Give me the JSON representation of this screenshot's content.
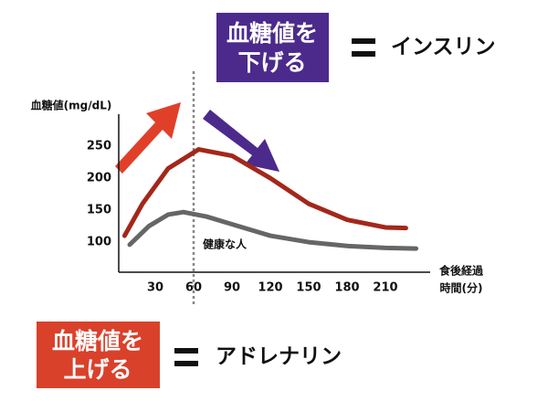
{
  "chart_data": {
    "type": "line",
    "y_label": "血糖値(mg/dL)",
    "x_label": [
      "食後経過",
      "時間(分)"
    ],
    "xlim": [
      0,
      245
    ],
    "xticks": [
      30,
      60,
      90,
      120,
      150,
      180,
      210
    ],
    "ylim": [
      53,
      300
    ],
    "yticks": [
      100,
      150,
      200,
      250
    ],
    "vline": 60,
    "series": [
      {
        "color": "#a3271a",
        "x": [
          6,
          20,
          40,
          64,
          90,
          120,
          150,
          180,
          210,
          226
        ],
        "values": [
          110,
          160,
          215,
          245,
          235,
          200,
          160,
          135,
          123,
          122
        ]
      },
      {
        "name": "健康な人",
        "color": "#666666",
        "x": [
          10,
          25,
          40,
          52,
          70,
          90,
          120,
          150,
          180,
          210,
          234
        ],
        "values": [
          96,
          125,
          143,
          147,
          140,
          128,
          110,
          100,
          94,
          91,
          90
        ]
      }
    ],
    "annotations": {
      "lower": {
        "box": [
          "血糖値を",
          "下げる"
        ],
        "box_color": "#4b2a8c",
        "text": "インスリン"
      },
      "raise": {
        "box": [
          "血糖値を",
          "上げる"
        ],
        "box_color": "#d9412b",
        "text": "アドレナリン"
      }
    }
  }
}
